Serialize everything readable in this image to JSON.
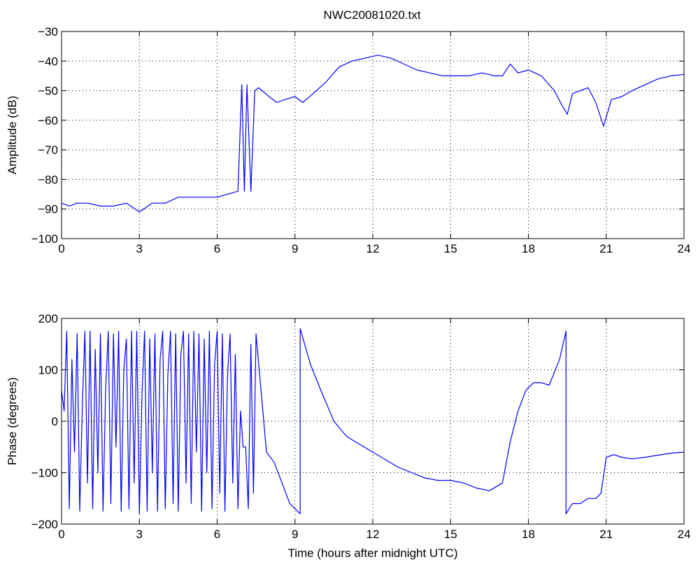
{
  "figure": {
    "title": "NWC20081020.txt",
    "background": "#ffffff",
    "line_color": "#0000ff"
  },
  "chart_data": [
    {
      "type": "line",
      "title": "NWC20081020.txt",
      "xlabel": "",
      "ylabel": "Amplitude (dB)",
      "xlim": [
        0,
        24
      ],
      "ylim": [
        -100,
        -30
      ],
      "xticks": [
        0,
        3,
        6,
        9,
        12,
        15,
        18,
        21,
        24
      ],
      "yticks": [
        -100,
        -90,
        -80,
        -70,
        -60,
        -50,
        -40,
        -30
      ],
      "xtick_labels": [
        "0",
        "3",
        "6",
        "9",
        "12",
        "15",
        "18",
        "21",
        "24"
      ],
      "ytick_labels": [
        "−100",
        "−90",
        "−80",
        "−70",
        "−60",
        "−50",
        "−40",
        "−30"
      ],
      "grid": true,
      "series": [
        {
          "color": "#0000ff",
          "x": [
            0,
            0.3,
            0.6,
            1,
            1.5,
            2,
            2.5,
            3,
            3.5,
            4,
            4.5,
            5,
            5.5,
            6,
            6.4,
            6.8,
            6.95,
            7.05,
            7.15,
            7.3,
            7.45,
            7.6,
            8,
            8.3,
            8.6,
            9,
            9.3,
            9.7,
            10.2,
            10.7,
            11.2,
            11.7,
            12.2,
            12.7,
            13.2,
            13.7,
            14.2,
            14.7,
            15.2,
            15.7,
            16.2,
            16.7,
            17.0,
            17.3,
            17.6,
            18,
            18.5,
            19,
            19.3,
            19.5,
            19.7,
            20,
            20.3,
            20.6,
            20.9,
            21.2,
            21.6,
            22,
            22.5,
            23,
            23.5,
            24
          ],
          "y": [
            -88,
            -89,
            -88,
            -88,
            -89,
            -89,
            -88,
            -91,
            -88,
            -88,
            -86,
            -86,
            -86,
            -86,
            -85,
            -84,
            -48,
            -84,
            -48,
            -84,
            -50,
            -49,
            -52,
            -54,
            -53,
            -52,
            -54,
            -51,
            -47,
            -42,
            -40,
            -39,
            -38,
            -39,
            -41,
            -43,
            -44,
            -45,
            -45,
            -45,
            -44,
            -45,
            -45,
            -41,
            -44,
            -43,
            -45,
            -50,
            -55,
            -58,
            -51,
            -50,
            -49,
            -54,
            -62,
            -53,
            -52,
            -50,
            -48,
            -46,
            -45,
            -44.5
          ]
        }
      ]
    },
    {
      "type": "line",
      "title": "",
      "xlabel": "Time (hours after midnight UTC)",
      "ylabel": "Phase (degrees)",
      "xlim": [
        0,
        24
      ],
      "ylim": [
        -200,
        200
      ],
      "xticks": [
        0,
        3,
        6,
        9,
        12,
        15,
        18,
        21,
        24
      ],
      "yticks": [
        -200,
        -100,
        0,
        100,
        200
      ],
      "xtick_labels": [
        "0",
        "3",
        "6",
        "9",
        "12",
        "15",
        "18",
        "21",
        "24"
      ],
      "ytick_labels": [
        "−200",
        "−100",
        "0",
        "100",
        "200"
      ],
      "grid": true,
      "series": [
        {
          "color": "#0000ff",
          "x": [
            0,
            0.1,
            0.2,
            0.3,
            0.4,
            0.5,
            0.6,
            0.7,
            0.8,
            0.9,
            1.0,
            1.1,
            1.2,
            1.3,
            1.4,
            1.5,
            1.6,
            1.7,
            1.8,
            1.9,
            2.0,
            2.1,
            2.2,
            2.3,
            2.4,
            2.5,
            2.6,
            2.7,
            2.8,
            2.9,
            3.0,
            3.1,
            3.2,
            3.3,
            3.4,
            3.5,
            3.6,
            3.7,
            3.8,
            3.9,
            4.0,
            4.1,
            4.2,
            4.3,
            4.4,
            4.5,
            4.6,
            4.7,
            4.8,
            4.9,
            5.0,
            5.1,
            5.2,
            5.3,
            5.4,
            5.5,
            5.6,
            5.7,
            5.8,
            5.9,
            6.0,
            6.1,
            6.2,
            6.3,
            6.4,
            6.5,
            6.6,
            6.7,
            6.8,
            6.9,
            7.0,
            7.1,
            7.2,
            7.3,
            7.4,
            7.5,
            7.9,
            8.2,
            8.5,
            8.8,
            9.2,
            9.2,
            9.6,
            10.0,
            10.5,
            11.0,
            11.5,
            12.0,
            12.5,
            13.0,
            13.5,
            14.0,
            14.5,
            15.0,
            15.5,
            16.0,
            16.5,
            17.0,
            17.3,
            17.6,
            17.9,
            18.2,
            18.5,
            18.8,
            19.2,
            19.45,
            19.45,
            19.7,
            20.0,
            20.3,
            20.6,
            20.8,
            21.0,
            21.3,
            21.6,
            22.0,
            22.5,
            23.0,
            23.5,
            24.0
          ],
          "y": [
            60,
            20,
            175,
            -170,
            120,
            -60,
            170,
            -175,
            30,
            175,
            -120,
            175,
            -170,
            140,
            -100,
            170,
            -175,
            60,
            175,
            -160,
            170,
            -50,
            175,
            -175,
            100,
            160,
            -170,
            175,
            -120,
            175,
            -180,
            50,
            175,
            -175,
            160,
            -100,
            170,
            -175,
            120,
            175,
            -170,
            90,
            175,
            -160,
            170,
            -175,
            130,
            175,
            -120,
            170,
            -160,
            175,
            -60,
            170,
            -175,
            160,
            -100,
            175,
            -170,
            110,
            175,
            -140,
            170,
            -175,
            90,
            170,
            -120,
            130,
            -170,
            20,
            -50,
            -50,
            -170,
            150,
            -140,
            170,
            -60,
            -80,
            -120,
            -160,
            -180,
            180,
            110,
            60,
            0,
            -30,
            -45,
            -60,
            -75,
            -90,
            -100,
            -110,
            -115,
            -115,
            -120,
            -130,
            -135,
            -120,
            -40,
            20,
            60,
            75,
            75,
            70,
            120,
            175,
            -180,
            -160,
            -160,
            -150,
            -150,
            -140,
            -70,
            -65,
            -70,
            -73,
            -70,
            -66,
            -62,
            -60
          ]
        }
      ]
    }
  ]
}
